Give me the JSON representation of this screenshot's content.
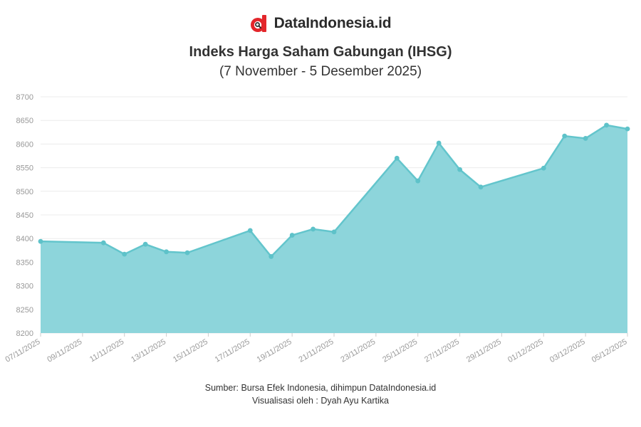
{
  "brand": {
    "name": "DataIndonesia.id",
    "logo_icon": "dataindonesia-logo-icon",
    "logo_color": "#e3262b"
  },
  "colors": {
    "area_fill": "#8dd5db",
    "line": "#63c5cc",
    "point": "#5ec2c9",
    "grid": "#ececec",
    "tick_text": "#999999"
  },
  "chart_data": {
    "type": "area",
    "title": "Indeks Harga Saham Gabungan (IHSG)",
    "subtitle": "(7 November - 5 Desember 2025)",
    "xlabel": "",
    "ylabel": "",
    "ylim": [
      8200,
      8700
    ],
    "yticks": [
      8200,
      8250,
      8300,
      8350,
      8400,
      8450,
      8500,
      8550,
      8600,
      8650,
      8700
    ],
    "xlim_day": [
      0,
      28
    ],
    "xticks": [
      {
        "day": 0,
        "label": "07/11/2025"
      },
      {
        "day": 2,
        "label": "09/11/2025"
      },
      {
        "day": 4,
        "label": "11/11/2025"
      },
      {
        "day": 6,
        "label": "13/11/2025"
      },
      {
        "day": 8,
        "label": "15/11/2025"
      },
      {
        "day": 10,
        "label": "17/11/2025"
      },
      {
        "day": 12,
        "label": "19/11/2025"
      },
      {
        "day": 14,
        "label": "21/11/2025"
      },
      {
        "day": 16,
        "label": "23/11/2025"
      },
      {
        "day": 18,
        "label": "25/11/2025"
      },
      {
        "day": 20,
        "label": "27/11/2025"
      },
      {
        "day": 22,
        "label": "29/11/2025"
      },
      {
        "day": 24,
        "label": "01/12/2025"
      },
      {
        "day": 26,
        "label": "03/12/2025"
      },
      {
        "day": 28,
        "label": "05/12/2025"
      }
    ],
    "series": [
      {
        "name": "IHSG",
        "points": [
          {
            "date": "07/11/2025",
            "day": 0,
            "value": 8394
          },
          {
            "date": "10/11/2025",
            "day": 3,
            "value": 8391
          },
          {
            "date": "11/11/2025",
            "day": 4,
            "value": 8367
          },
          {
            "date": "12/11/2025",
            "day": 5,
            "value": 8388
          },
          {
            "date": "13/11/2025",
            "day": 6,
            "value": 8372
          },
          {
            "date": "14/11/2025",
            "day": 7,
            "value": 8370
          },
          {
            "date": "17/11/2025",
            "day": 10,
            "value": 8417
          },
          {
            "date": "18/11/2025",
            "day": 11,
            "value": 8362
          },
          {
            "date": "19/11/2025",
            "day": 12,
            "value": 8407
          },
          {
            "date": "20/11/2025",
            "day": 13,
            "value": 8420
          },
          {
            "date": "21/11/2025",
            "day": 14,
            "value": 8414
          },
          {
            "date": "24/11/2025",
            "day": 17,
            "value": 8570
          },
          {
            "date": "25/11/2025",
            "day": 18,
            "value": 8522
          },
          {
            "date": "26/11/2025",
            "day": 19,
            "value": 8602
          },
          {
            "date": "27/11/2025",
            "day": 20,
            "value": 8546
          },
          {
            "date": "28/11/2025",
            "day": 21,
            "value": 8509
          },
          {
            "date": "01/12/2025",
            "day": 24,
            "value": 8549
          },
          {
            "date": "02/12/2025",
            "day": 25,
            "value": 8617
          },
          {
            "date": "03/12/2025",
            "day": 26,
            "value": 8612
          },
          {
            "date": "04/12/2025",
            "day": 27,
            "value": 8640
          },
          {
            "date": "05/12/2025",
            "day": 28,
            "value": 8632
          }
        ]
      }
    ],
    "grid": true,
    "legend": "none"
  },
  "footer": {
    "source": "Sumber: Bursa Efek Indonesia, dihimpun DataIndonesia.id",
    "credit": "Visualisasi oleh : Dyah Ayu Kartika"
  }
}
